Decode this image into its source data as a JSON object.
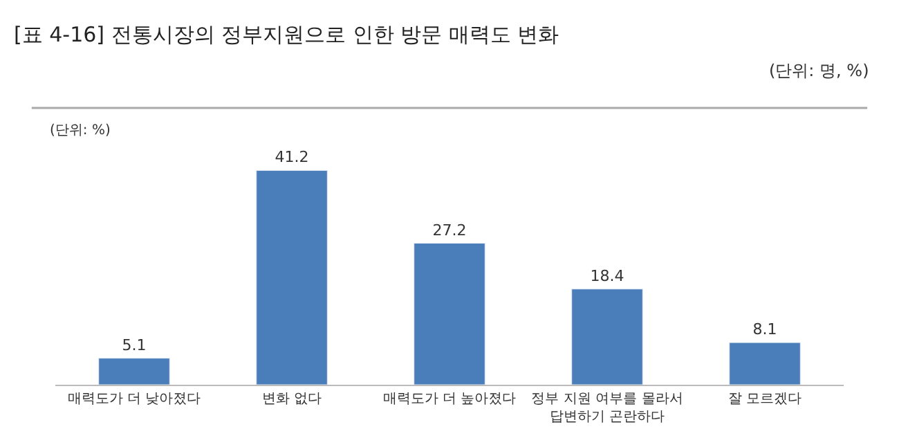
{
  "chart_data": {
    "type": "bar",
    "title": "[표 4-16] 전통시장의 정부지원으로 인한 방문 매력도 변화",
    "subtitle": "(단위: 명, %)",
    "annotations": [
      "(단위: %)"
    ],
    "categories": [
      "매력도가 더 낮아졌다",
      "변화 없다",
      "매력도가 더 높아졌다",
      "정부 지원 여부를 몰라서 답변하기 곤란하다",
      "잘 모르겠다"
    ],
    "values": [
      5.1,
      41.2,
      27.2,
      18.4,
      8.1
    ],
    "color": "#4a7ebb",
    "data_labels": true
  }
}
